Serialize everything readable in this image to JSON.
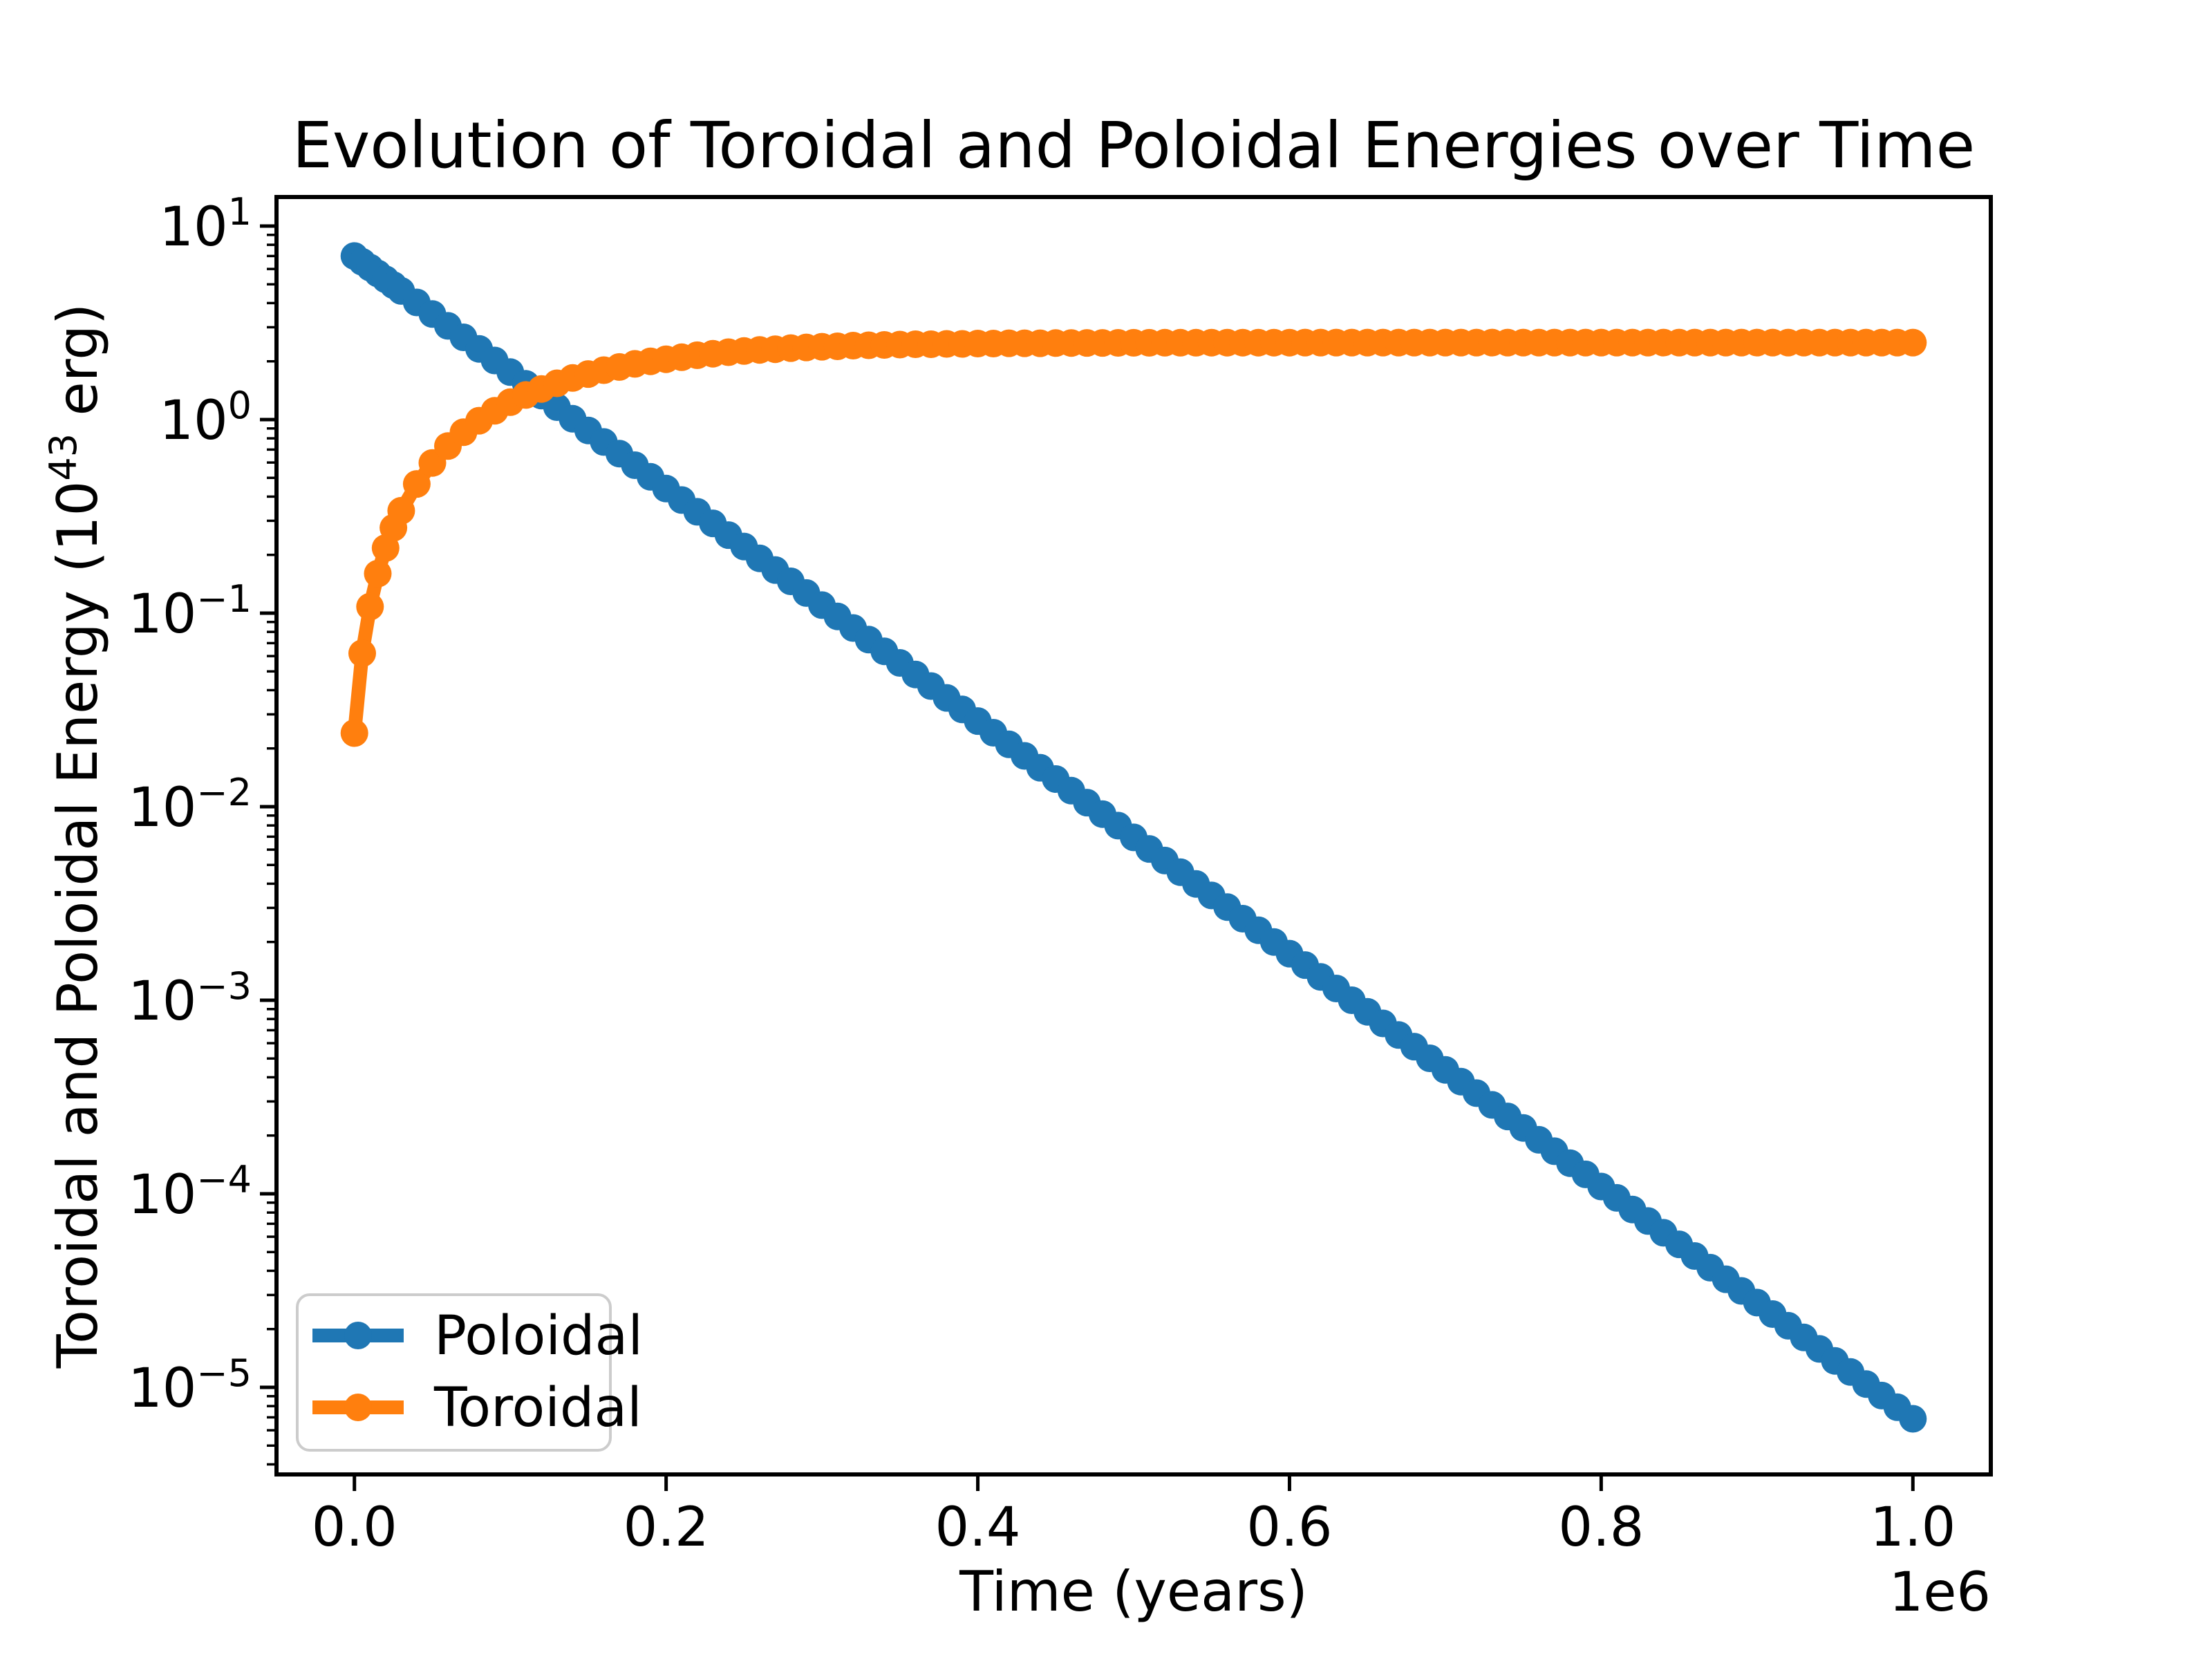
{
  "chart_data": {
    "type": "line",
    "title": "Evolution of Toroidal and Poloidal Energies over Time",
    "xlabel": "Time (years)",
    "ylabel": "Toroidal and Poloidal Energy (10⁴³ erg)",
    "ylabel_parts": {
      "prefix": "Toroidal and Poloidal Energy (10",
      "exponent": "43",
      "suffix": " erg)"
    },
    "x_offset_text": "1e6",
    "y_scale": "log",
    "grid": false,
    "xlim": [
      -50000,
      1050000
    ],
    "ylim_log10": [
      -5.45,
      1.15
    ],
    "x_ticks": [
      {
        "value": 0,
        "label": "0.0"
      },
      {
        "value": 200000,
        "label": "0.2"
      },
      {
        "value": 400000,
        "label": "0.4"
      },
      {
        "value": 600000,
        "label": "0.6"
      },
      {
        "value": 800000,
        "label": "0.8"
      },
      {
        "value": 1000000,
        "label": "1.0"
      }
    ],
    "y_ticks": [
      {
        "exponent": 1,
        "label_base": "10",
        "label_exp": "1"
      },
      {
        "exponent": 0,
        "label_base": "10",
        "label_exp": "0"
      },
      {
        "exponent": -1,
        "label_base": "10",
        "label_exp": "−1"
      },
      {
        "exponent": -2,
        "label_base": "10",
        "label_exp": "−2"
      },
      {
        "exponent": -3,
        "label_base": "10",
        "label_exp": "−3"
      },
      {
        "exponent": -4,
        "label_base": "10",
        "label_exp": "−4"
      },
      {
        "exponent": -5,
        "label_base": "10",
        "label_exp": "−5"
      }
    ],
    "y_minor_spec": {
      "mantissas": [
        2,
        3,
        4,
        5,
        6,
        7,
        8,
        9
      ],
      "exponents": [
        0,
        -1,
        -2,
        -3,
        -4,
        -5,
        -6
      ]
    },
    "legend": {
      "location": "lower left",
      "entries": [
        "Poloidal",
        "Toroidal"
      ]
    },
    "t_years": [
      0,
      5000,
      10000,
      15000,
      20000,
      25000,
      30000,
      40000,
      50000,
      60000,
      70000,
      80000,
      90000,
      100000,
      110000,
      120000,
      130000,
      140000,
      150000,
      160000,
      170000,
      180000,
      190000,
      200000,
      210000,
      220000,
      230000,
      240000,
      250000,
      260000,
      270000,
      280000,
      290000,
      300000,
      310000,
      320000,
      330000,
      340000,
      350000,
      360000,
      370000,
      380000,
      390000,
      400000,
      410000,
      420000,
      430000,
      440000,
      450000,
      460000,
      470000,
      480000,
      490000,
      500000,
      510000,
      520000,
      530000,
      540000,
      550000,
      560000,
      570000,
      580000,
      590000,
      600000,
      610000,
      620000,
      630000,
      640000,
      650000,
      660000,
      670000,
      680000,
      690000,
      700000,
      710000,
      720000,
      730000,
      740000,
      750000,
      760000,
      770000,
      780000,
      790000,
      800000,
      810000,
      820000,
      830000,
      840000,
      850000,
      860000,
      870000,
      880000,
      890000,
      900000,
      910000,
      920000,
      930000,
      940000,
      950000,
      960000,
      970000,
      980000,
      990000,
      1000000
    ],
    "series": [
      {
        "name": "Poloidal",
        "color": "#1f77b4",
        "marker": "circle",
        "values": [
          7.0,
          6.53,
          6.1,
          5.69,
          5.31,
          4.95,
          4.62,
          4.03,
          3.51,
          3.05,
          2.66,
          2.32,
          2.02,
          1.76,
          1.53,
          1.33,
          1.16,
          1.01,
          0.879,
          0.766,
          0.667,
          0.581,
          0.506,
          0.44,
          0.384,
          0.334,
          0.291,
          0.253,
          0.221,
          0.192,
          0.167,
          0.146,
          0.127,
          0.11,
          0.0962,
          0.0838,
          0.073,
          0.0635,
          0.0553,
          0.0482,
          0.042,
          0.0365,
          0.0318,
          0.0277,
          0.0241,
          0.021,
          0.0183,
          0.0159,
          0.0139,
          0.0121,
          0.0105,
          0.00916,
          0.00798,
          0.00694,
          0.00605,
          0.00527,
          0.00459,
          0.00399,
          0.00348,
          0.00303,
          0.00264,
          0.0023,
          0.002,
          0.00174,
          0.00152,
          0.00132,
          0.00115,
          0.001,
          0.000872,
          0.000759,
          0.000661,
          0.000576,
          0.000501,
          0.000437,
          0.00038,
          0.000331,
          0.000288,
          0.000251,
          0.000219,
          0.00019,
          0.000166,
          0.000144,
          0.000126,
          0.000109,
          9.53e-05,
          8.3e-05,
          7.23e-05,
          6.29e-05,
          5.48e-05,
          4.77e-05,
          4.15e-05,
          3.62e-05,
          3.15e-05,
          2.74e-05,
          2.39e-05,
          2.08e-05,
          1.81e-05,
          1.58e-05,
          1.37e-05,
          1.2e-05,
          1.04e-05,
          9.07e-06,
          7.89e-06,
          6.88e-06
        ]
      },
      {
        "name": "Toroidal",
        "color": "#ff7f0e",
        "marker": "circle",
        "values": [
          0.024,
          0.062,
          0.108,
          0.16,
          0.217,
          0.276,
          0.338,
          0.465,
          0.597,
          0.73,
          0.86,
          0.987,
          1.11,
          1.23,
          1.34,
          1.44,
          1.54,
          1.64,
          1.72,
          1.8,
          1.87,
          1.94,
          2.0,
          2.05,
          2.1,
          2.15,
          2.19,
          2.23,
          2.26,
          2.29,
          2.31,
          2.34,
          2.36,
          2.38,
          2.39,
          2.41,
          2.42,
          2.43,
          2.44,
          2.45,
          2.45,
          2.46,
          2.46,
          2.47,
          2.47,
          2.48,
          2.48,
          2.48,
          2.485,
          2.487,
          2.489,
          2.49,
          2.492,
          2.493,
          2.494,
          2.495,
          2.496,
          2.496,
          2.497,
          2.497,
          2.498,
          2.498,
          2.498,
          2.498,
          2.499,
          2.499,
          2.499,
          2.499,
          2.499,
          2.499,
          2.499,
          2.499,
          2.5,
          2.5,
          2.5,
          2.5,
          2.5,
          2.5,
          2.5,
          2.5,
          2.5,
          2.5,
          2.5,
          2.5,
          2.5,
          2.5,
          2.5,
          2.5,
          2.5,
          2.5,
          2.5,
          2.5,
          2.5,
          2.5,
          2.5,
          2.5,
          2.5,
          2.5,
          2.5,
          2.5,
          2.5,
          2.5,
          2.5,
          2.5
        ]
      }
    ]
  }
}
